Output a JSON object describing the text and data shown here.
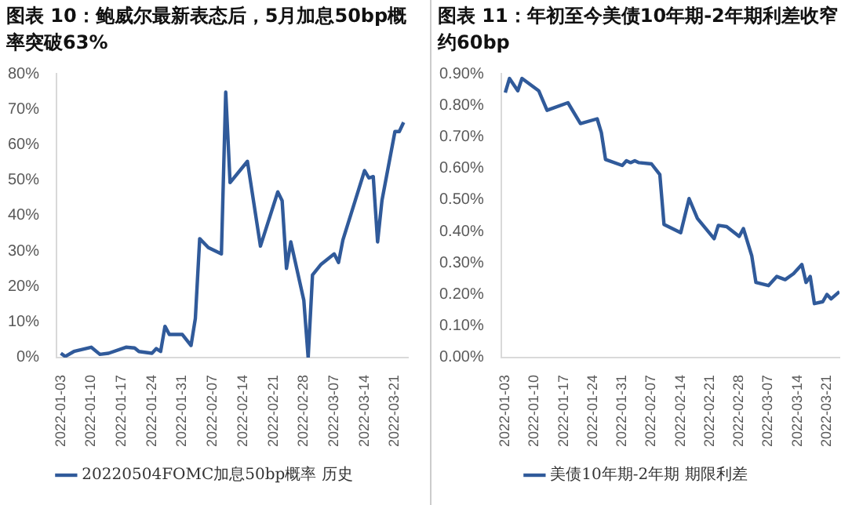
{
  "chart_data": [
    {
      "type": "line",
      "title": "图表 10：鲍威尔最新表态后，5月加息50bp概率突破63%",
      "legend": "bottom",
      "marker": "none",
      "x": [
        "2022-01-03",
        "2022-01-04",
        "2022-01-06",
        "2022-01-10",
        "2022-01-12",
        "2022-01-14",
        "2022-01-18",
        "2022-01-20",
        "2022-01-21",
        "2022-01-24",
        "2022-01-25",
        "2022-01-26",
        "2022-01-27",
        "2022-01-28",
        "2022-01-31",
        "2022-02-02",
        "2022-02-03",
        "2022-02-04",
        "2022-02-06",
        "2022-02-09",
        "2022-02-10",
        "2022-02-11",
        "2022-02-15",
        "2022-02-18",
        "2022-02-22",
        "2022-02-23",
        "2022-02-24",
        "2022-02-25",
        "2022-02-28",
        "2022-03-01",
        "2022-03-02",
        "2022-03-04",
        "2022-03-07",
        "2022-03-08",
        "2022-03-09",
        "2022-03-14",
        "2022-03-15",
        "2022-03-16",
        "2022-03-17",
        "2022-03-18",
        "2022-03-21",
        "2022-03-22",
        "2022-03-23"
      ],
      "series": [
        {
          "name": "20220504FOMC加息50bp概率 历史",
          "color": "#305a9a",
          "values": [
            1.2,
            0.3,
            1.7,
            2.9,
            0.9,
            1.2,
            2.9,
            2.7,
            1.7,
            1.2,
            2.5,
            1.7,
            8.8,
            6.5,
            6.5,
            3.4,
            11,
            33.5,
            31,
            29.2,
            74.8,
            49.3,
            55.3,
            31.4,
            46.7,
            44.2,
            25.1,
            32.6,
            16.1,
            0,
            23.3,
            26.3,
            29.2,
            26.8,
            33.1,
            52.7,
            50.6,
            51,
            32.6,
            44.2,
            63.7,
            63.7,
            66.3
          ]
        }
      ],
      "xlim": [
        "2022-01-02",
        "2022-03-24"
      ],
      "xticks": [
        "2022-01-03",
        "2022-01-10",
        "2022-01-17",
        "2022-01-24",
        "2022-01-31",
        "2022-02-07",
        "2022-02-14",
        "2022-02-21",
        "2022-02-28",
        "2022-03-07",
        "2022-03-14",
        "2022-03-21"
      ],
      "ylim": [
        0,
        80
      ],
      "yticks": [
        {
          "value": 0,
          "label": "0%"
        },
        {
          "value": 10,
          "label": "10%"
        },
        {
          "value": 20,
          "label": "20%"
        },
        {
          "value": 30,
          "label": "30%"
        },
        {
          "value": 40,
          "label": "40%"
        },
        {
          "value": 50,
          "label": "50%"
        },
        {
          "value": 60,
          "label": "60%"
        },
        {
          "value": 70,
          "label": "70%"
        },
        {
          "value": 80,
          "label": "80%"
        }
      ]
    },
    {
      "type": "line",
      "title": "图表 11：年初至今美债10年期-2年期利差收窄约60bp",
      "legend": "bottom",
      "marker": "none",
      "x": [
        "2022-01-03",
        "2022-01-04",
        "2022-01-06",
        "2022-01-07",
        "2022-01-11",
        "2022-01-13",
        "2022-01-18",
        "2022-01-21",
        "2022-01-25",
        "2022-01-26",
        "2022-01-27",
        "2022-01-31",
        "2022-02-01",
        "2022-02-02",
        "2022-02-03",
        "2022-02-04",
        "2022-02-07",
        "2022-02-09",
        "2022-02-10",
        "2022-02-14",
        "2022-02-16",
        "2022-02-18",
        "2022-02-22",
        "2022-02-23",
        "2022-02-25",
        "2022-02-28",
        "2022-03-01",
        "2022-03-03",
        "2022-03-04",
        "2022-03-07",
        "2022-03-09",
        "2022-03-11",
        "2022-03-13",
        "2022-03-15",
        "2022-03-16",
        "2022-03-17",
        "2022-03-18",
        "2022-03-20",
        "2022-03-21",
        "2022-03-22",
        "2022-03-24"
      ],
      "series": [
        {
          "name": "美债10年期-2年期 期限利差",
          "color": "#305a9a",
          "values": [
            0.84,
            0.885,
            0.846,
            0.885,
            0.846,
            0.784,
            0.808,
            0.742,
            0.757,
            0.713,
            0.628,
            0.609,
            0.624,
            0.618,
            0.624,
            0.618,
            0.614,
            0.58,
            0.422,
            0.396,
            0.504,
            0.441,
            0.377,
            0.419,
            0.415,
            0.384,
            0.409,
            0.323,
            0.238,
            0.228,
            0.257,
            0.247,
            0.266,
            0.295,
            0.238,
            0.257,
            0.171,
            0.177,
            0.2,
            0.186,
            0.209
          ]
        }
      ],
      "xlim": [
        "2022-01-02",
        "2022-03-24"
      ],
      "xticks": [
        "2022-01-03",
        "2022-01-10",
        "2022-01-17",
        "2022-01-24",
        "2022-01-31",
        "2022-02-07",
        "2022-02-14",
        "2022-02-21",
        "2022-02-28",
        "2022-03-07",
        "2022-03-14",
        "2022-03-21"
      ],
      "ylim": [
        0,
        0.9
      ],
      "yticks": [
        {
          "value": 0,
          "label": "0.00%"
        },
        {
          "value": 0.1,
          "label": "0.10%"
        },
        {
          "value": 0.2,
          "label": "0.20%"
        },
        {
          "value": 0.3,
          "label": "0.30%"
        },
        {
          "value": 0.4,
          "label": "0.40%"
        },
        {
          "value": 0.5,
          "label": "0.50%"
        },
        {
          "value": 0.6,
          "label": "0.60%"
        },
        {
          "value": 0.7,
          "label": "0.70%"
        },
        {
          "value": 0.8,
          "label": "0.80%"
        },
        {
          "value": 0.9,
          "label": "0.90%"
        }
      ]
    }
  ]
}
